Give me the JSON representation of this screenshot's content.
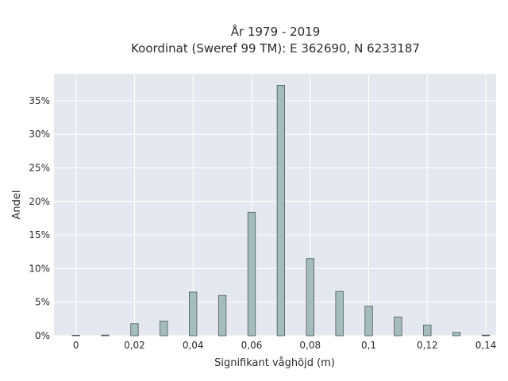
{
  "chart_data": {
    "type": "bar",
    "title": "År 1979 - 2019",
    "subtitle": "Koordinat (Sweref 99 TM): E 362690, N 6233187",
    "xlabel": "Signifikant våghöjd (m)",
    "ylabel": "Andel",
    "x": [
      0.0,
      0.01,
      0.02,
      0.03,
      0.04,
      0.05,
      0.06,
      0.07,
      0.08,
      0.09,
      0.1,
      0.11,
      0.12,
      0.13,
      0.14
    ],
    "values": [
      0.0,
      0.1,
      1.8,
      2.2,
      6.5,
      6.0,
      18.4,
      37.3,
      11.5,
      6.6,
      4.4,
      2.8,
      1.6,
      0.5,
      0.1
    ],
    "xlim": [
      -0.0075,
      0.1435
    ],
    "ylim": [
      0,
      39
    ],
    "x_ticks": [
      0,
      0.02,
      0.04,
      0.06,
      0.08,
      0.1,
      0.12,
      0.14
    ],
    "x_tick_labels": [
      "0",
      "0,02",
      "0,04",
      "0,06",
      "0,08",
      "0,1",
      "0,12",
      "0,14"
    ],
    "y_ticks": [
      0,
      5,
      10,
      15,
      20,
      25,
      30,
      35
    ],
    "y_tick_labels": [
      "0%",
      "5%",
      "10%",
      "15%",
      "20%",
      "25%",
      "30%",
      "35%"
    ],
    "grid": true,
    "colors": {
      "plot_bg": "#e5e8ef",
      "grid": "#ffffff",
      "bar_fill": "#a5bcbc",
      "bar_stroke": "#4b5a5a"
    }
  }
}
